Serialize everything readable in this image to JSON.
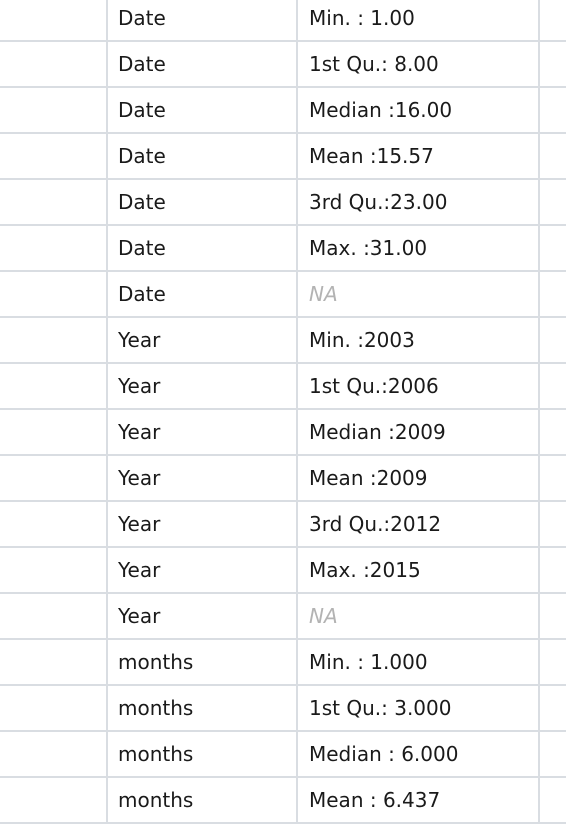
{
  "table": {
    "rows": [
      {
        "var": "Date",
        "value": "Min.   : 1.00",
        "na": false
      },
      {
        "var": "Date",
        "value": "1st Qu.: 8.00",
        "na": false
      },
      {
        "var": "Date",
        "value": "Median :16.00",
        "na": false
      },
      {
        "var": "Date",
        "value": "Mean   :15.57",
        "na": false
      },
      {
        "var": "Date",
        "value": "3rd Qu.:23.00",
        "na": false
      },
      {
        "var": "Date",
        "value": "Max.   :31.00",
        "na": false
      },
      {
        "var": "Date",
        "value": "NA",
        "na": true
      },
      {
        "var": "Year",
        "value": "Min.   :2003",
        "na": false
      },
      {
        "var": "Year",
        "value": "1st Qu.:2006",
        "na": false
      },
      {
        "var": "Year",
        "value": "Median :2009",
        "na": false
      },
      {
        "var": "Year",
        "value": "Mean   :2009",
        "na": false
      },
      {
        "var": "Year",
        "value": "3rd Qu.:2012",
        "na": false
      },
      {
        "var": "Year",
        "value": "Max.   :2015",
        "na": false
      },
      {
        "var": "Year",
        "value": "NA",
        "na": true
      },
      {
        "var": "months",
        "value": "Min.   : 1.000",
        "na": false
      },
      {
        "var": "months",
        "value": "1st Qu.: 3.000",
        "na": false
      },
      {
        "var": "months",
        "value": "Median : 6.000",
        "na": false
      },
      {
        "var": "months",
        "value": "Mean   : 6.437",
        "na": false
      }
    ]
  }
}
